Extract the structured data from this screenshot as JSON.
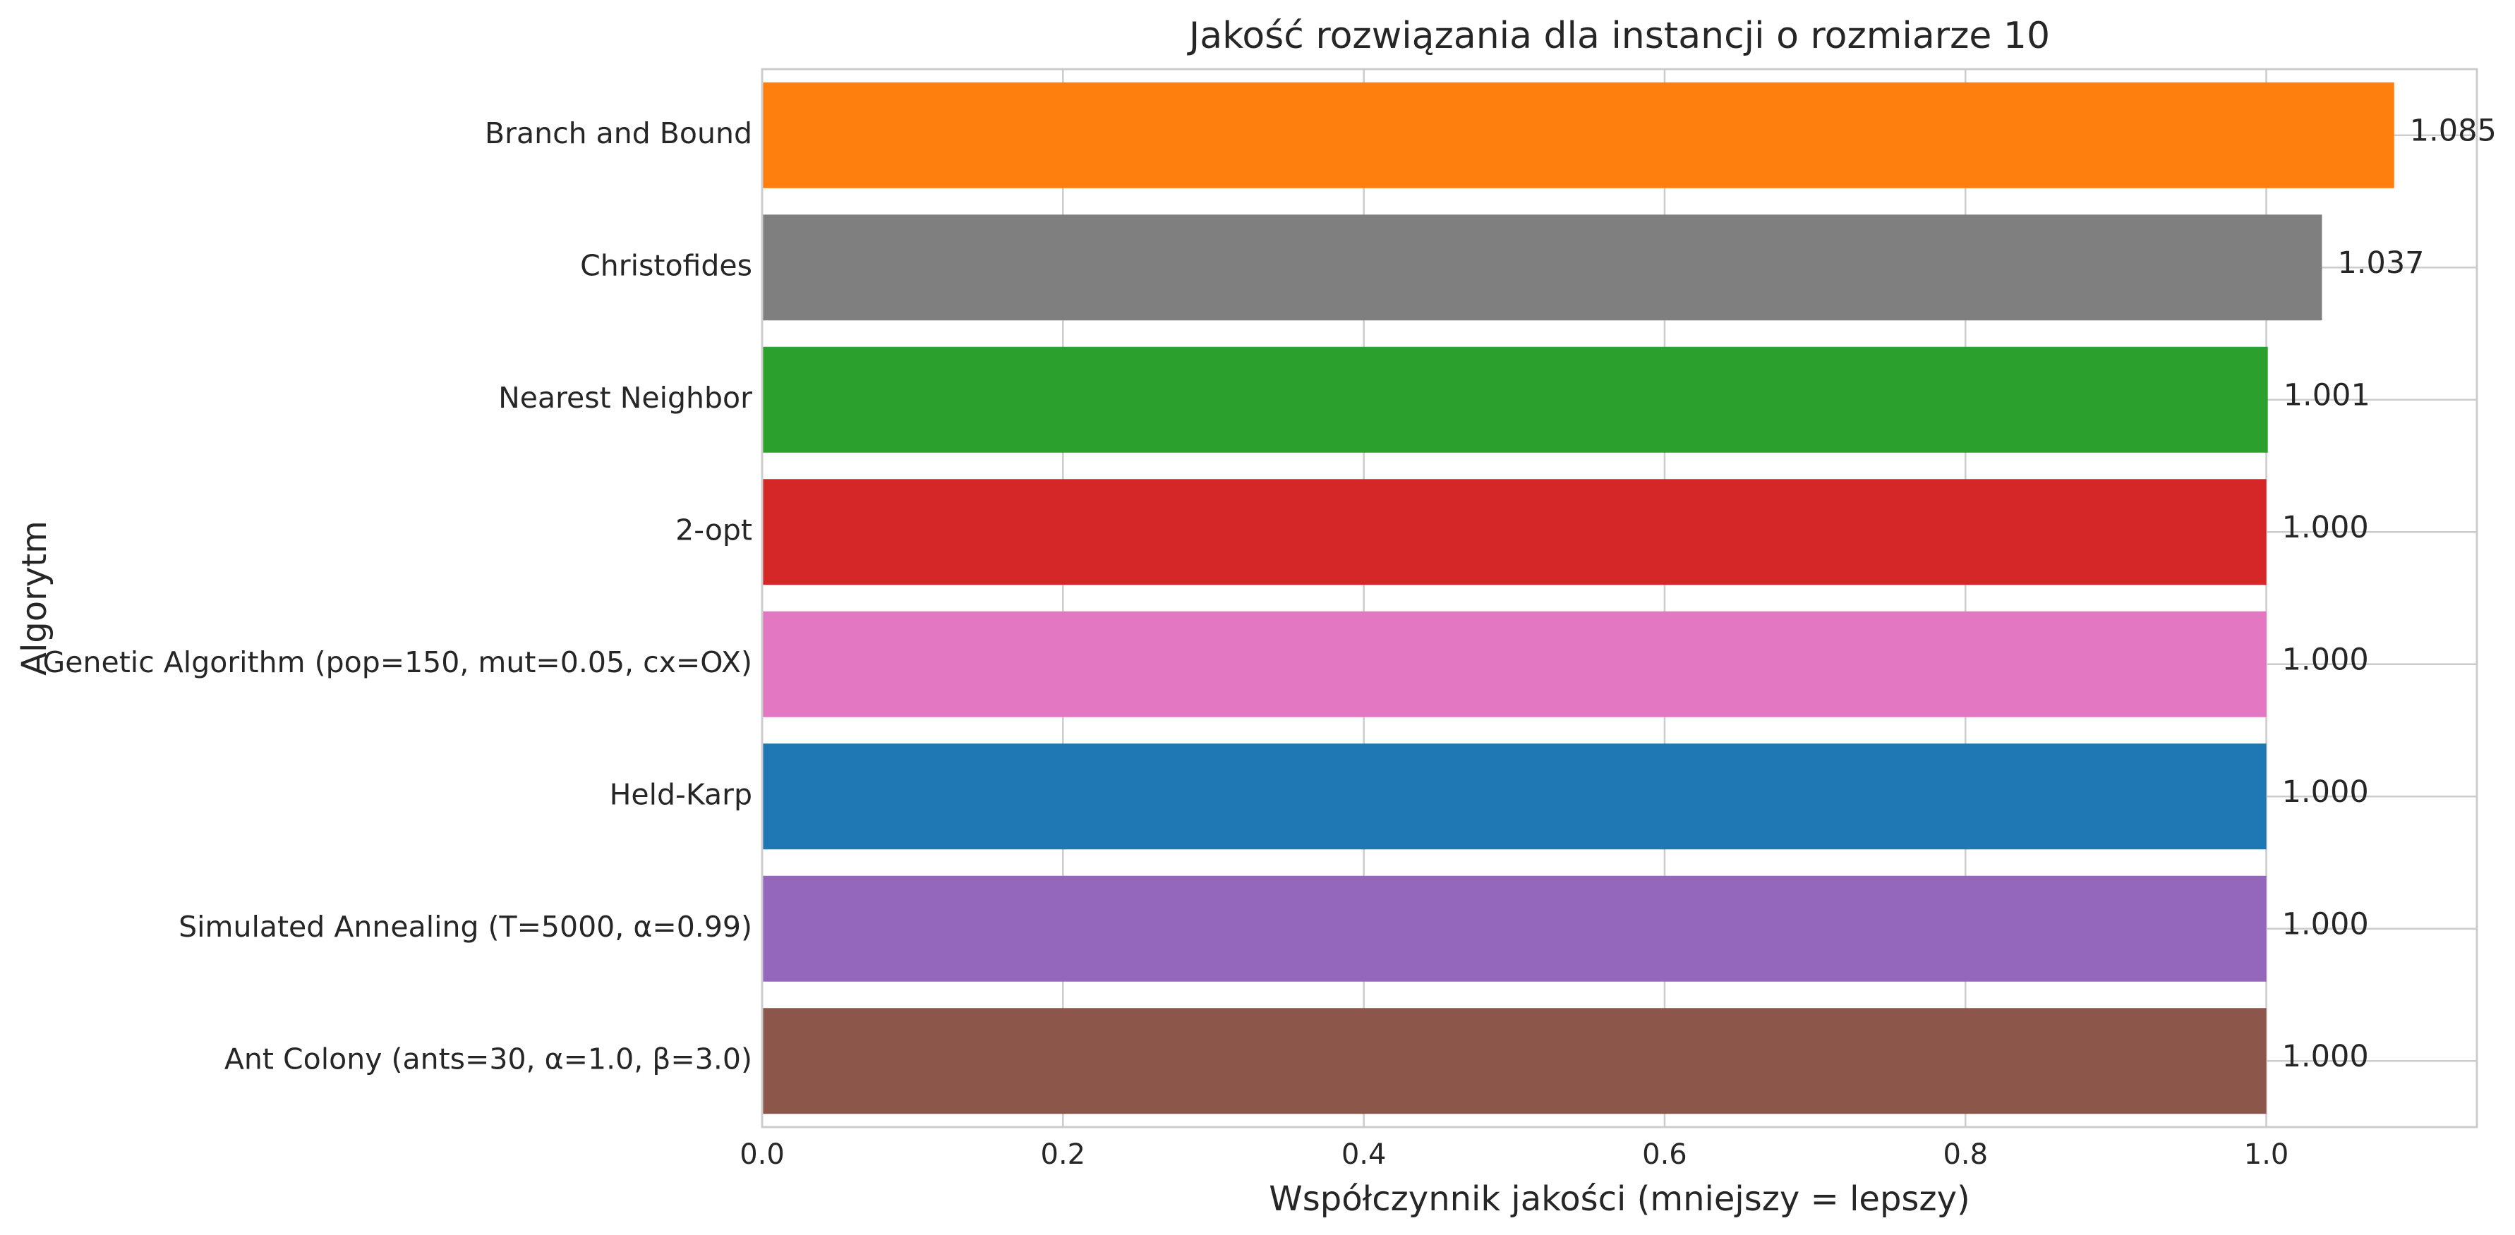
{
  "chart_data": {
    "type": "bar",
    "orientation": "horizontal",
    "title": "Jakość rozwiązania dla instancji o rozmiarze 10",
    "xlabel": "Współczynnik jakości (mniejszy = lepszy)",
    "ylabel": "Algorytm",
    "xlim": [
      0.0,
      1.14
    ],
    "xticks": [
      0.0,
      0.2,
      0.4,
      0.6,
      0.8,
      1.0
    ],
    "xtick_labels": [
      "0.0",
      "0.2",
      "0.4",
      "0.6",
      "0.8",
      "1.0"
    ],
    "grid": true,
    "legend": "none",
    "categories": [
      "Branch and Bound",
      "Christofides",
      "Nearest Neighbor",
      "2-opt",
      "Genetic Algorithm (pop=150, mut=0.05, cx=OX)",
      "Held-Karp",
      "Simulated Annealing (T=5000, α=0.99)",
      "Ant Colony (ants=30, α=1.0, β=3.0)"
    ],
    "values": [
      1.085,
      1.037,
      1.001,
      1.0,
      1.0,
      1.0,
      1.0,
      1.0
    ],
    "value_labels": [
      "1.085",
      "1.037",
      "1.001",
      "1.000",
      "1.000",
      "1.000",
      "1.000",
      "1.000"
    ],
    "colors": [
      "#ff7f0e",
      "#7f7f7f",
      "#2ca02c",
      "#d62728",
      "#e377c2",
      "#1f77b4",
      "#9467bd",
      "#8c564b"
    ]
  }
}
